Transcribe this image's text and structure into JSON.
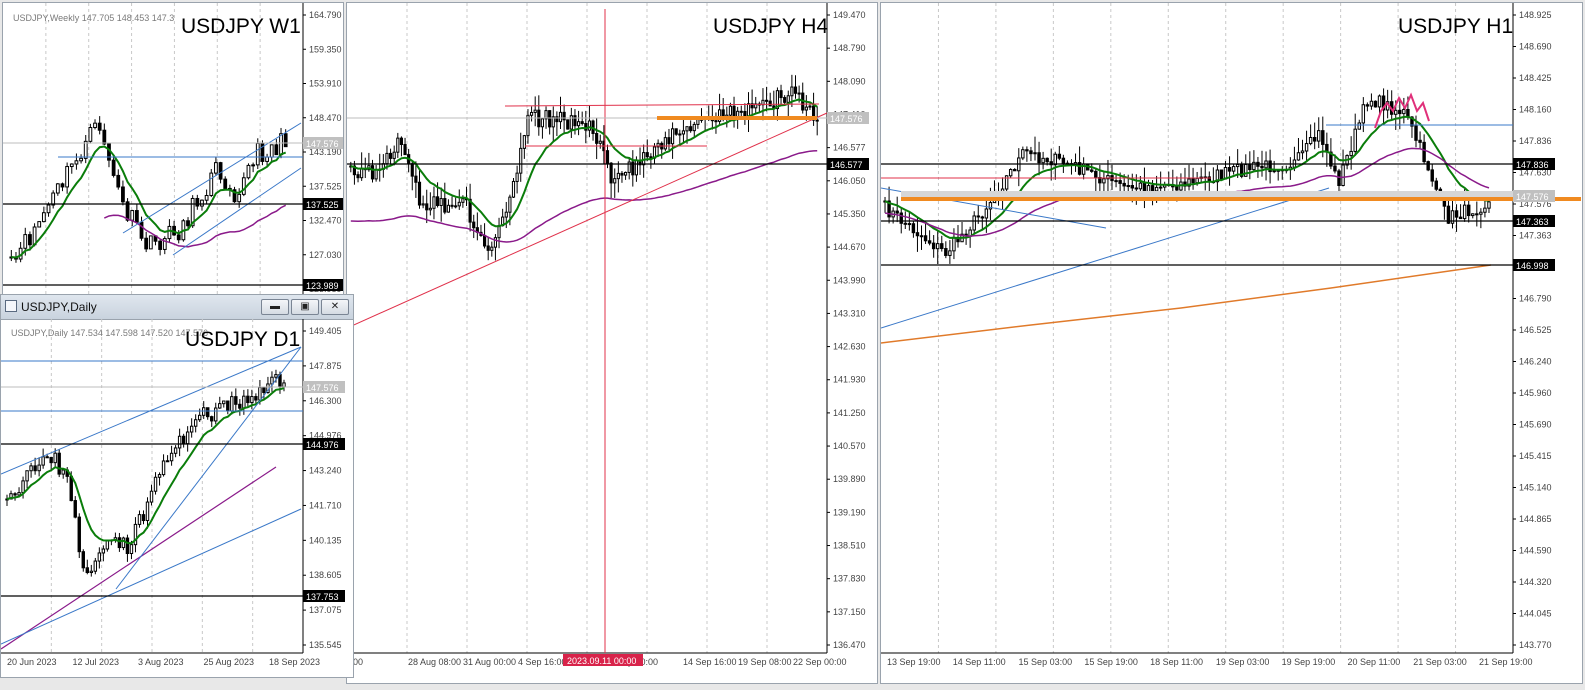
{
  "colors": {
    "background": "#ffffff",
    "candle": "#000000",
    "ma_fast": "#0a7d0a",
    "ma_slow": "#8a1a8a",
    "ma_long": "#e07a2a",
    "trendline_blue": "#3a78c8",
    "trendline_red": "#e0304a",
    "level_orange": "#f08a20",
    "level_black": "#000000",
    "grid": "#c8c8c8"
  },
  "windows": {
    "w1": {
      "symbol_label": "USDJPY W1",
      "info_line": "USDJPY,Weekly  147.705 148.453 147.3",
      "price_ticks": [
        "164.790",
        "159.350",
        "153.910",
        "148.470",
        "143.190",
        "137.525",
        "132.470",
        "127.030",
        "123.989"
      ],
      "price_tag_current": "147.576",
      "price_tag_levels": [
        "137.525",
        "123.989"
      ]
    },
    "d1": {
      "window_title": "USDJPY,Daily",
      "symbol_label": "USDJPY D1",
      "info_line": "USDJPY,Daily  147.534 147.598 147.520 147.576",
      "price_ticks": [
        "149.405",
        "147.875",
        "146.300",
        "144.976",
        "143.240",
        "141.710",
        "140.135",
        "138.605",
        "137.075",
        "135.545"
      ],
      "price_tag_current": "147.576",
      "price_tag_levels": [
        "144.976",
        "137.753"
      ],
      "time_ticks": [
        "20 Jun 2023",
        "12 Jul 2023",
        "3 Aug 2023",
        "25 Aug 2023",
        "18 Sep 2023"
      ],
      "buttons": {
        "minimize": "▭",
        "maximize": "▭",
        "close": "✕"
      }
    },
    "h4": {
      "symbol_label": "USDJPY H4",
      "price_ticks": [
        "149.470",
        "148.790",
        "148.090",
        "147.410",
        "146.577",
        "146.050",
        "145.350",
        "144.670",
        "143.990",
        "143.310",
        "142.630",
        "141.930",
        "141.250",
        "140.570",
        "139.890",
        "139.190",
        "138.510",
        "137.830",
        "137.150",
        "136.470"
      ],
      "price_tag_current": "147.576",
      "price_tag_levels": [
        "146.577"
      ],
      "time_ticks": [
        "00",
        "28 Aug 08:00",
        "31 Aug 00:00",
        "4 Sep 16:00",
        "2023.09.11 00:00",
        "p 00:00",
        "14 Sep 16:00",
        "19 Sep 08:00",
        "22 Sep 00:00"
      ],
      "crosshair_time": "2023.09.11 00:00"
    },
    "h1": {
      "symbol_label": "USDJPY H1",
      "price_ticks": [
        "148.925",
        "148.690",
        "148.425",
        "148.160",
        "147.836",
        "147.630",
        "147.576",
        "147.363",
        "146.998",
        "146.790",
        "146.525",
        "146.240",
        "145.960",
        "145.690",
        "145.415",
        "145.140",
        "144.865",
        "144.590",
        "144.320",
        "144.045",
        "143.770"
      ],
      "price_tag_current": "147.576",
      "price_tag_levels": [
        "147.836",
        "147.363",
        "146.998"
      ],
      "time_ticks": [
        "13 Sep 19:00",
        "14 Sep 11:00",
        "15 Sep 03:00",
        "15 Sep 19:00",
        "18 Sep 11:00",
        "19 Sep 03:00",
        "19 Sep 19:00",
        "20 Sep 11:00",
        "21 Sep 03:00",
        "21 Sep 19:00"
      ]
    }
  }
}
